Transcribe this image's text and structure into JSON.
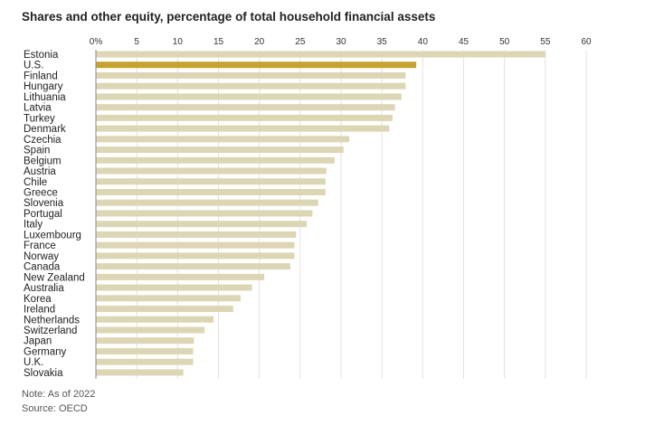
{
  "chart_data": {
    "type": "bar",
    "orientation": "horizontal",
    "title": "Shares and other equity, percentage of total household financial assets",
    "xlabel": "",
    "ylabel": "",
    "xlim": [
      0,
      60
    ],
    "x_ticks": [
      "0%",
      "5",
      "10",
      "15",
      "20",
      "25",
      "30",
      "35",
      "40",
      "45",
      "50",
      "55",
      "60"
    ],
    "grid": true,
    "legend": "none",
    "highlight_category": "U.S.",
    "colors": {
      "bar": "#ddd6b4",
      "highlight": "#c6a22e",
      "grid": "#e2e2e2",
      "axis": "#888888"
    },
    "categories": [
      "Estonia",
      "U.S.",
      "Finland",
      "Hungary",
      "Lithuania",
      "Latvia",
      "Turkey",
      "Denmark",
      "Czechia",
      "Spain",
      "Belgium",
      "Austria",
      "Chile",
      "Greece",
      "Slovenia",
      "Portugal",
      "Italy",
      "Luxembourg",
      "France",
      "Norway",
      "Canada",
      "New Zealand",
      "Australia",
      "Korea",
      "Ireland",
      "Netherlands",
      "Switzerland",
      "Japan",
      "Germany",
      "U.K.",
      "Slovakia"
    ],
    "values": [
      55.0,
      39.2,
      37.9,
      37.9,
      37.4,
      36.6,
      36.3,
      35.9,
      31.0,
      30.3,
      29.2,
      28.2,
      28.1,
      28.1,
      27.2,
      26.5,
      25.8,
      24.5,
      24.3,
      24.3,
      23.8,
      20.6,
      19.1,
      17.7,
      16.8,
      14.4,
      13.3,
      12.0,
      11.9,
      11.9,
      10.7
    ]
  },
  "footer": {
    "note": "Note: As of 2022",
    "source": "Source: OECD"
  }
}
